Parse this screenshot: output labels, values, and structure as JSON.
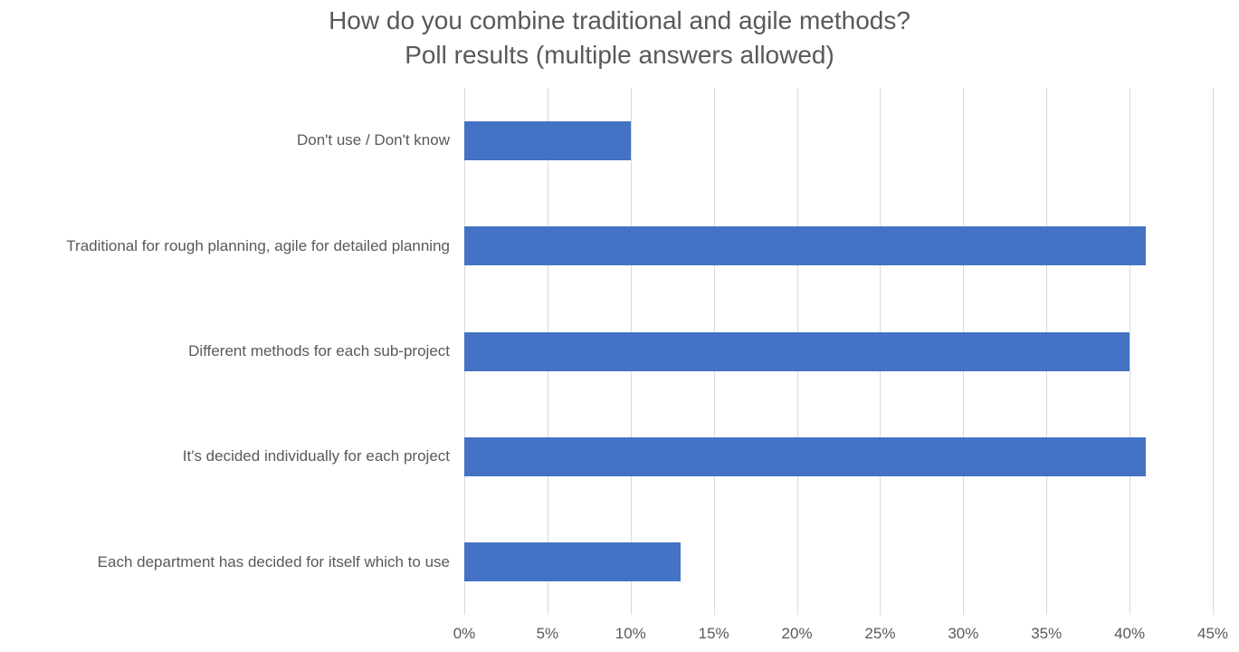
{
  "chart_data": {
    "type": "bar",
    "orientation": "horizontal",
    "title": "How do you combine traditional and agile methods?",
    "subtitle": "Poll results (multiple answers allowed)",
    "categories": [
      "Don't use / Don't know",
      "Traditional for rough planning, agile for detailed planning",
      "Different methods for each sub-project",
      "It's decided individually for each project",
      "Each department has decided for itself which to use"
    ],
    "values": [
      10,
      41,
      40,
      41,
      13
    ],
    "unit": "%",
    "xlabel": "",
    "ylabel": "",
    "xlim": [
      0,
      45
    ],
    "tick_step": 5,
    "tick_labels": [
      "0%",
      "5%",
      "10%",
      "15%",
      "20%",
      "25%",
      "30%",
      "35%",
      "40%",
      "45%"
    ],
    "grid": true,
    "legend": false,
    "colors": {
      "bar": "#4472C4",
      "gridline": "#D9D9D9",
      "text": "#595959",
      "background": "#FFFFFF"
    }
  }
}
